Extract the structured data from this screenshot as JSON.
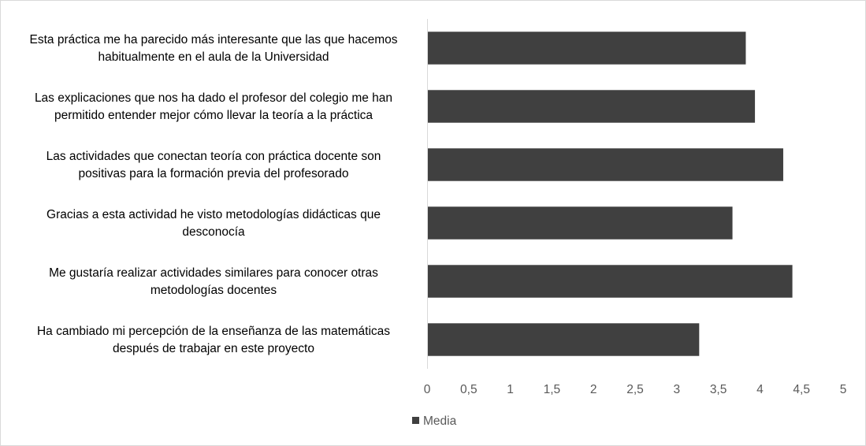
{
  "chart_data": {
    "type": "bar",
    "orientation": "horizontal",
    "categories": [
      [
        "Esta práctica me ha parecido más interesante que las que hacemos",
        "habitualmente en el aula de la Universidad"
      ],
      [
        "Las explicaciones que nos ha dado el profesor del colegio me han",
        "permitido entender mejor cómo llevar la teoría a la práctica"
      ],
      [
        "Las actividades que conectan teoría con práctica docente son",
        "positivas para la formación previa del profesorado"
      ],
      [
        "Gracias a esta actividad he visto metodologías didácticas que",
        "desconocía"
      ],
      [
        "Me gustaría realizar actividades similares para conocer otras",
        "metodologías docentes"
      ],
      [
        "Ha cambiado mi percepción de la enseñanza de las matemáticas",
        "después de trabajar en este proyecto"
      ]
    ],
    "series": [
      {
        "name": "Media",
        "values": [
          3.83,
          3.94,
          4.28,
          3.67,
          4.39,
          3.27
        ],
        "color": "#404040"
      }
    ],
    "xlim": [
      0,
      5
    ],
    "xticks": [
      "0",
      "0,5",
      "1",
      "1,5",
      "2",
      "2,5",
      "3",
      "3,5",
      "4",
      "4,5",
      "5"
    ],
    "title": "",
    "xlabel": "",
    "ylabel": "",
    "grid": false,
    "legend": "bottom",
    "axis_color": "#d9d9d9",
    "border_color": "#d9d9d9"
  }
}
